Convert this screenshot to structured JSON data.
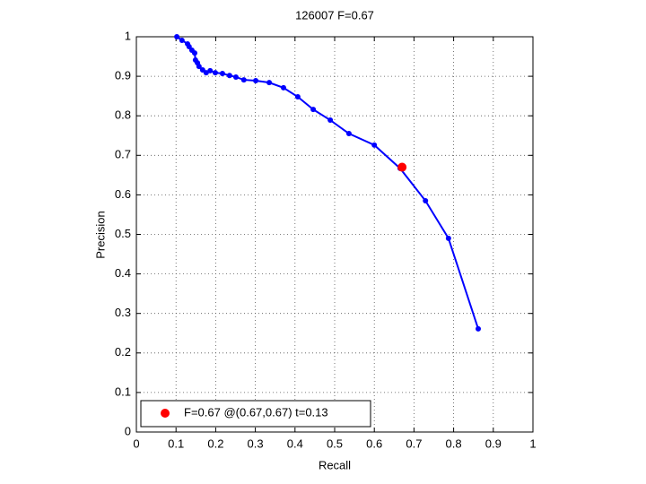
{
  "chart_data": {
    "type": "line",
    "title": "126007 F=0.67",
    "x_label": "Recall",
    "y_label": "Precision",
    "xlim": [
      0,
      1
    ],
    "ylim": [
      0,
      1
    ],
    "xticks": [
      0,
      0.1,
      0.2,
      0.3,
      0.4,
      0.5,
      0.6,
      0.7,
      0.8,
      0.9,
      1
    ],
    "yticks": [
      0,
      0.1,
      0.2,
      0.3,
      0.4,
      0.5,
      0.6,
      0.7,
      0.8,
      0.9,
      1
    ],
    "grid": true,
    "legend": "lower left",
    "series": [
      {
        "color": "#0000ff",
        "x": [
          0.102,
          0.115,
          0.129,
          0.133,
          0.14,
          0.147,
          0.149,
          0.154,
          0.158,
          0.167,
          0.176,
          0.186,
          0.199,
          0.217,
          0.235,
          0.251,
          0.271,
          0.301,
          0.335,
          0.371,
          0.407,
          0.446,
          0.489,
          0.536,
          0.6,
          0.665,
          0.729,
          0.787,
          0.862
        ],
        "values": [
          1.0,
          0.991,
          0.982,
          0.975,
          0.966,
          0.959,
          0.941,
          0.934,
          0.925,
          0.916,
          0.909,
          0.914,
          0.909,
          0.907,
          0.902,
          0.898,
          0.891,
          0.889,
          0.884,
          0.871,
          0.848,
          0.816,
          0.789,
          0.755,
          0.726,
          0.667,
          0.585,
          0.49,
          0.261
        ]
      },
      {
        "name": "F=0.67 @(0.67,0.67) t=0.13",
        "color": "#ff0000",
        "x": [
          0.67
        ],
        "values": [
          0.67
        ]
      }
    ]
  }
}
